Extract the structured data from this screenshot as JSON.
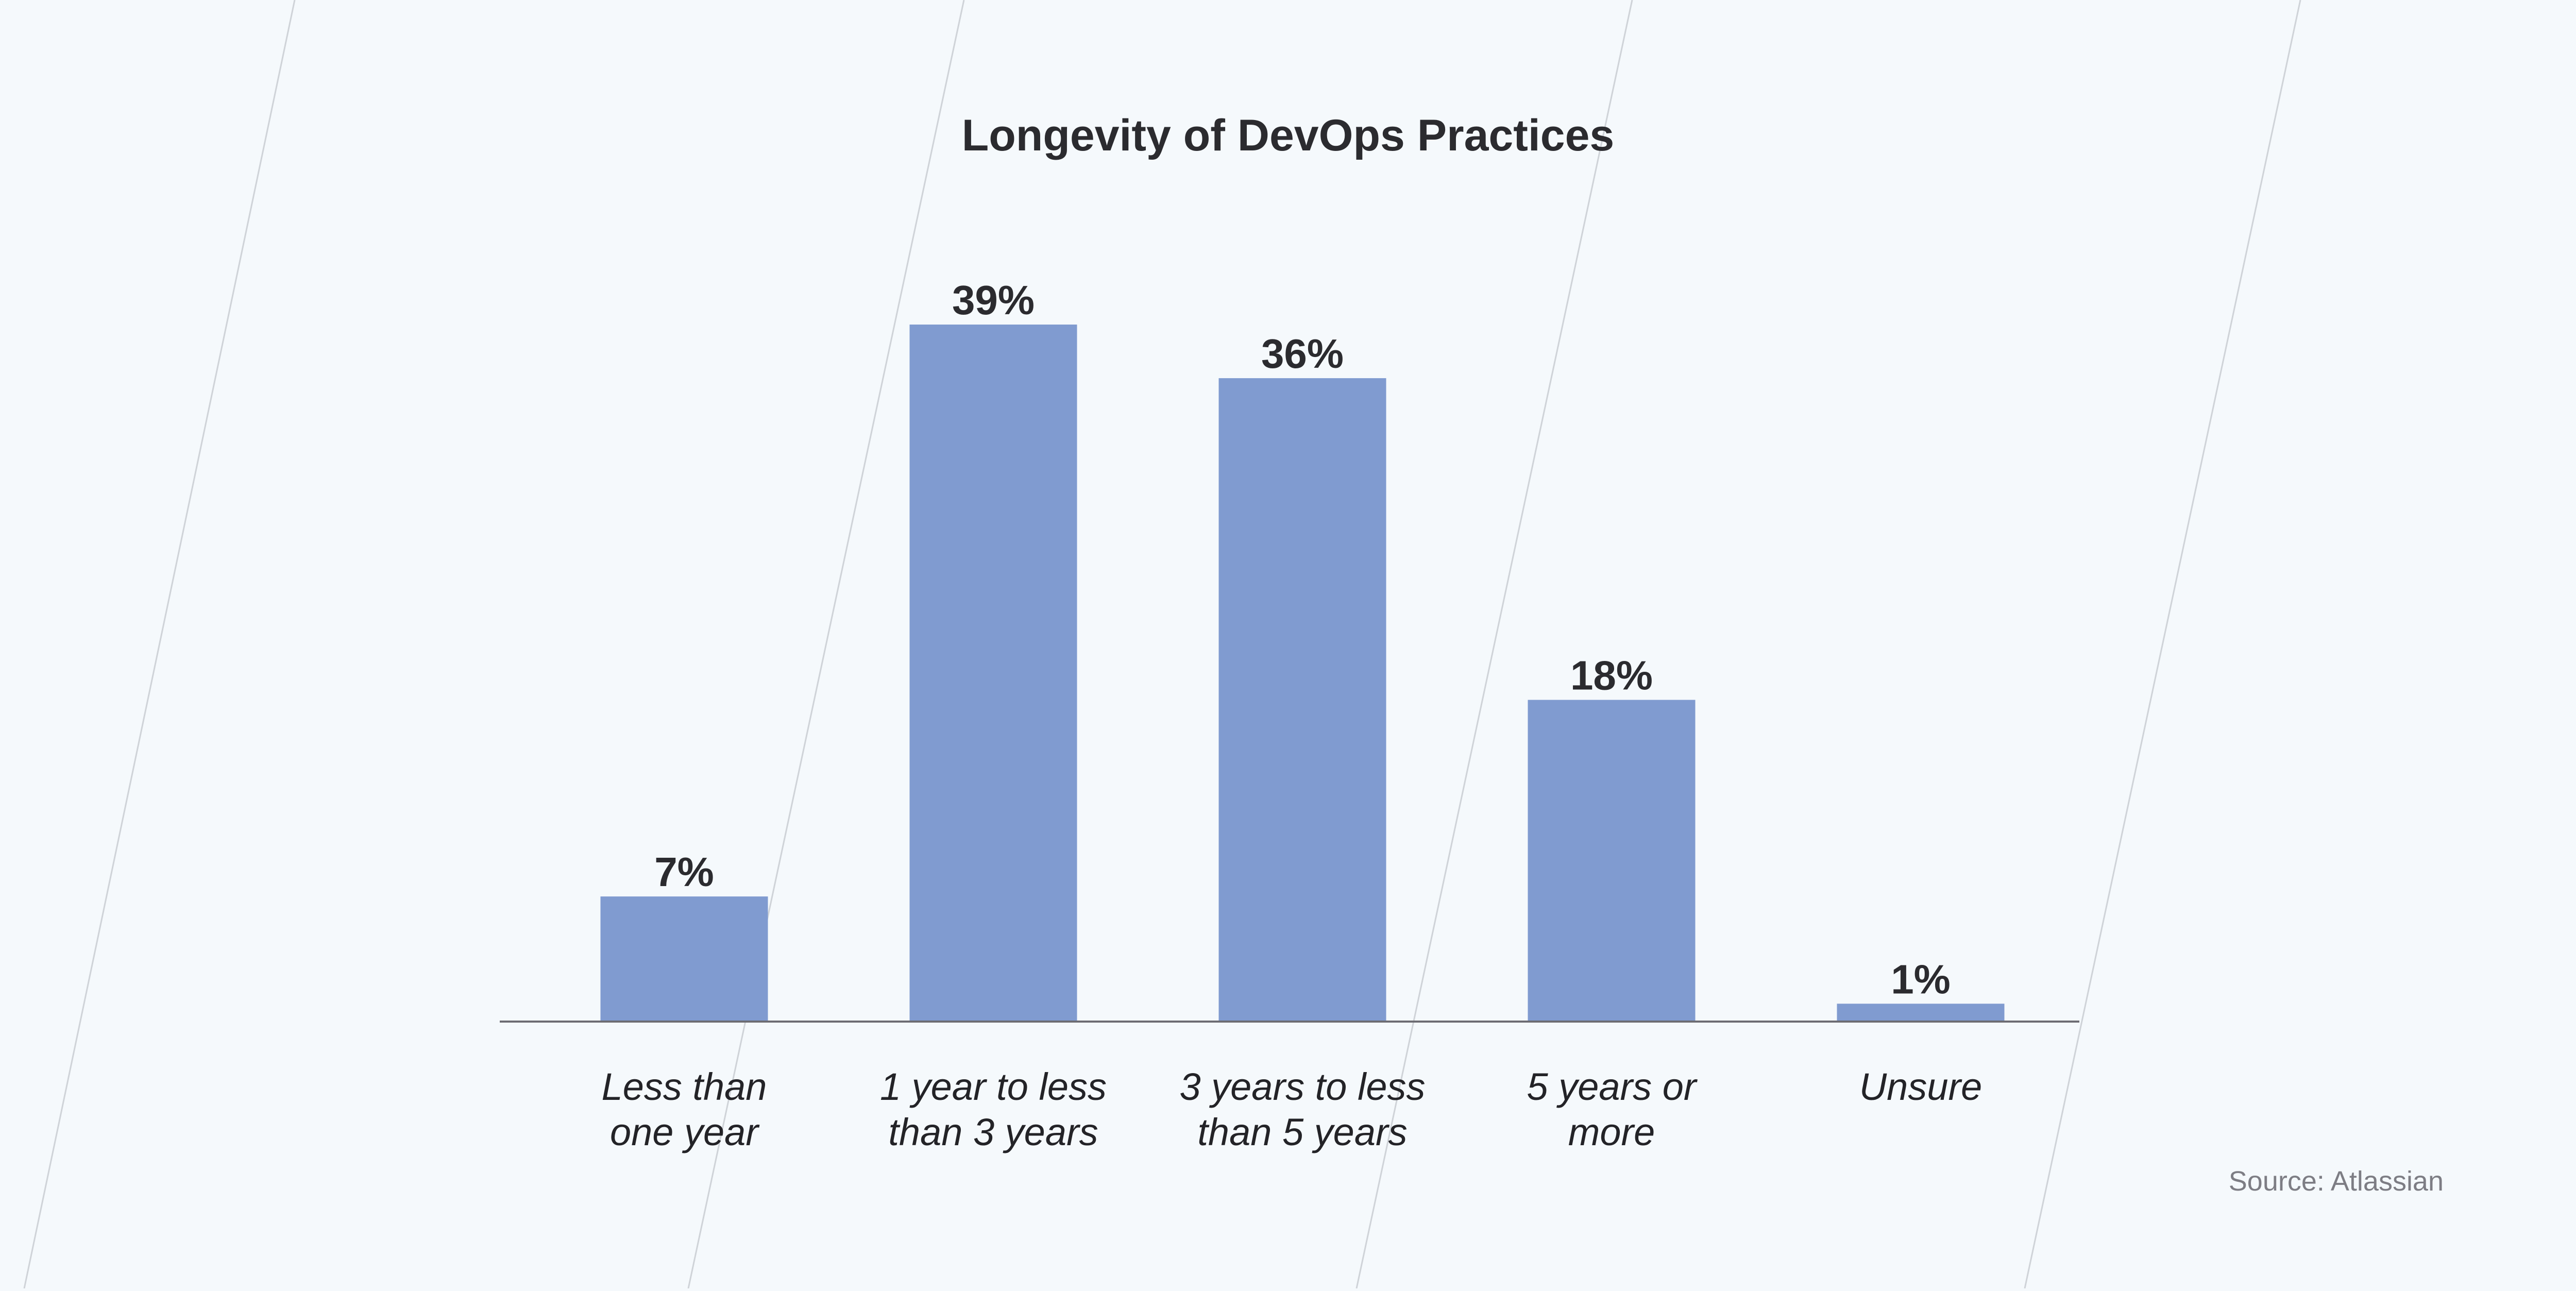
{
  "chart_data": {
    "type": "bar",
    "title": "Longevity of DevOps Practices",
    "categories": [
      [
        "Less than",
        "one year"
      ],
      [
        "1 year to less",
        "than 3 years"
      ],
      [
        "3 years to less",
        "than 5 years"
      ],
      [
        "5 years or",
        "more"
      ],
      [
        "Unsure"
      ]
    ],
    "values": [
      7,
      39,
      36,
      18,
      1
    ],
    "value_labels": [
      "7%",
      "39%",
      "36%",
      "18%",
      "1%"
    ],
    "ylim": [
      0,
      39
    ],
    "grid": false,
    "legend": "none",
    "bar_color": "#809bd0"
  },
  "source": "Source: Atlassian",
  "colors": {
    "background": "#f5f9fc",
    "text": "#2b2b2f",
    "axis": "#6d6d73",
    "decor_lines": "#cfd3d8"
  }
}
